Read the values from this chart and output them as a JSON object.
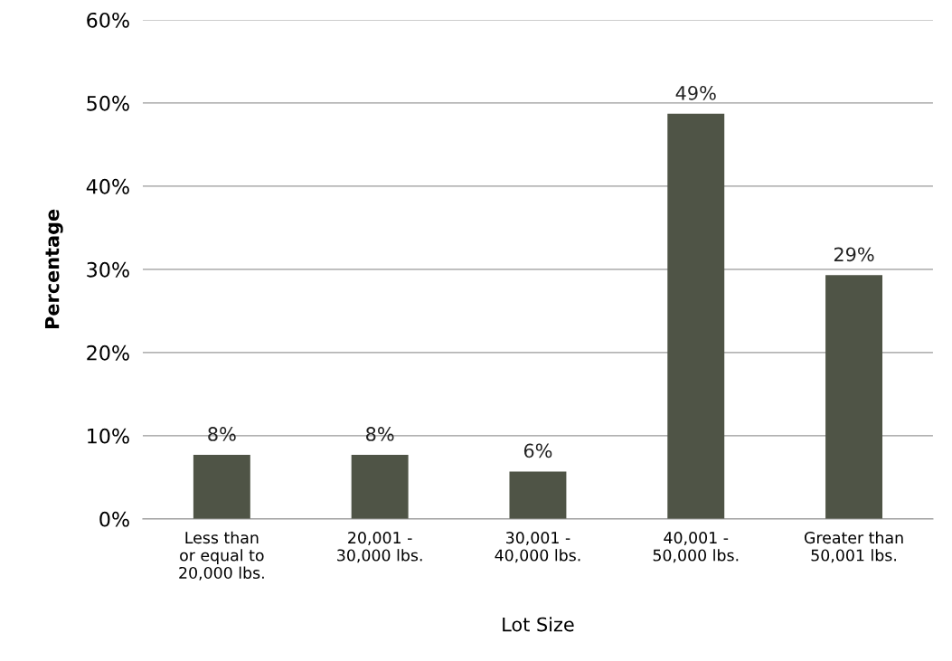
{
  "chart_data": {
    "type": "bar",
    "xlabel": "Lot Size",
    "ylabel": "Percentage",
    "categories": [
      "Less than\nor equal to\n20,000 lbs.",
      "20,001 -\n30,000 lbs.",
      "30,001 -\n40,000 lbs.",
      "40,001 -\n50,000 lbs.",
      "Greater than\n50,001 lbs."
    ],
    "values": [
      7.7,
      7.7,
      5.7,
      48.7,
      29.3
    ],
    "value_labels": [
      "8%",
      "8%",
      "6%",
      "49%",
      "29%"
    ],
    "color": "#4f5446",
    "ylim": [
      0,
      60
    ],
    "yticks": [
      {
        "value": 0,
        "label": "0%"
      },
      {
        "value": 10,
        "label": "10%"
      },
      {
        "value": 20,
        "label": "20%"
      },
      {
        "value": 30,
        "label": "30%"
      },
      {
        "value": 40,
        "label": "40%"
      },
      {
        "value": 50,
        "label": "50%"
      },
      {
        "value": 60,
        "label": "60%"
      }
    ],
    "grid": "y",
    "legend": false
  }
}
